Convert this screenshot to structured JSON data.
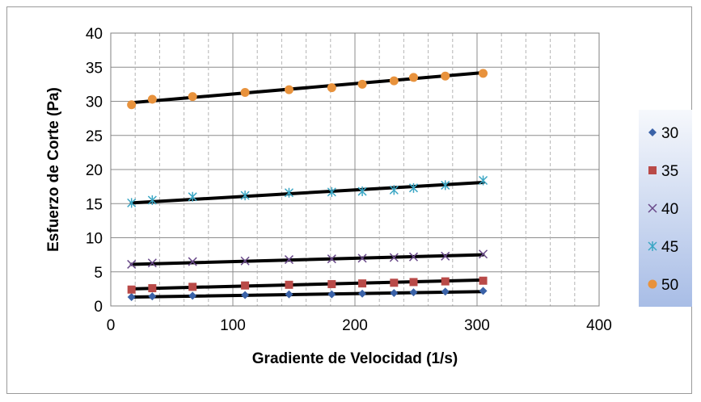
{
  "chart_data": {
    "type": "scatter",
    "title": "",
    "xlabel": "Gradiente de Velocidad (1/s)",
    "ylabel": "Esfuerzo de Corte (Pa)",
    "xlim": [
      0,
      400
    ],
    "ylim": [
      0,
      40
    ],
    "x_ticks": [
      "0",
      "100",
      "200",
      "300",
      "400"
    ],
    "y_ticks": [
      "0",
      "5",
      "10",
      "15",
      "20",
      "25",
      "30",
      "35",
      "40"
    ],
    "grid": true,
    "legend_position": "right",
    "x": [
      17,
      34,
      67,
      110,
      146,
      181,
      206,
      232,
      248,
      274,
      305
    ],
    "series": [
      {
        "name": "30",
        "marker": "diamond",
        "color": "#3a62a8",
        "values": [
          1.3,
          1.4,
          1.5,
          1.6,
          1.7,
          1.7,
          1.8,
          1.9,
          2.0,
          2.1,
          2.2
        ],
        "trendline": [
          1.3,
          2.1
        ]
      },
      {
        "name": "35",
        "marker": "square",
        "color": "#b94a48",
        "values": [
          2.4,
          2.6,
          2.8,
          3.0,
          3.1,
          3.2,
          3.3,
          3.4,
          3.5,
          3.6,
          3.7
        ],
        "trendline": [
          2.5,
          3.8
        ]
      },
      {
        "name": "40",
        "marker": "x",
        "color": "#6a4a8a",
        "values": [
          6.1,
          6.3,
          6.5,
          6.6,
          6.8,
          6.9,
          7.0,
          7.1,
          7.2,
          7.3,
          7.6
        ],
        "trendline": [
          6.1,
          7.5
        ]
      },
      {
        "name": "45",
        "marker": "asterisk",
        "color": "#3aa6c4",
        "values": [
          15.1,
          15.5,
          16.0,
          16.2,
          16.6,
          16.7,
          16.8,
          17.0,
          17.3,
          17.7,
          18.4
        ],
        "trendline": [
          15.1,
          18.1
        ]
      },
      {
        "name": "50",
        "marker": "circle",
        "color": "#e8923c",
        "values": [
          29.5,
          30.3,
          30.7,
          31.3,
          31.7,
          32.0,
          32.5,
          33.0,
          33.5,
          33.7,
          34.1
        ],
        "trendline": [
          29.8,
          34.2
        ]
      }
    ]
  }
}
